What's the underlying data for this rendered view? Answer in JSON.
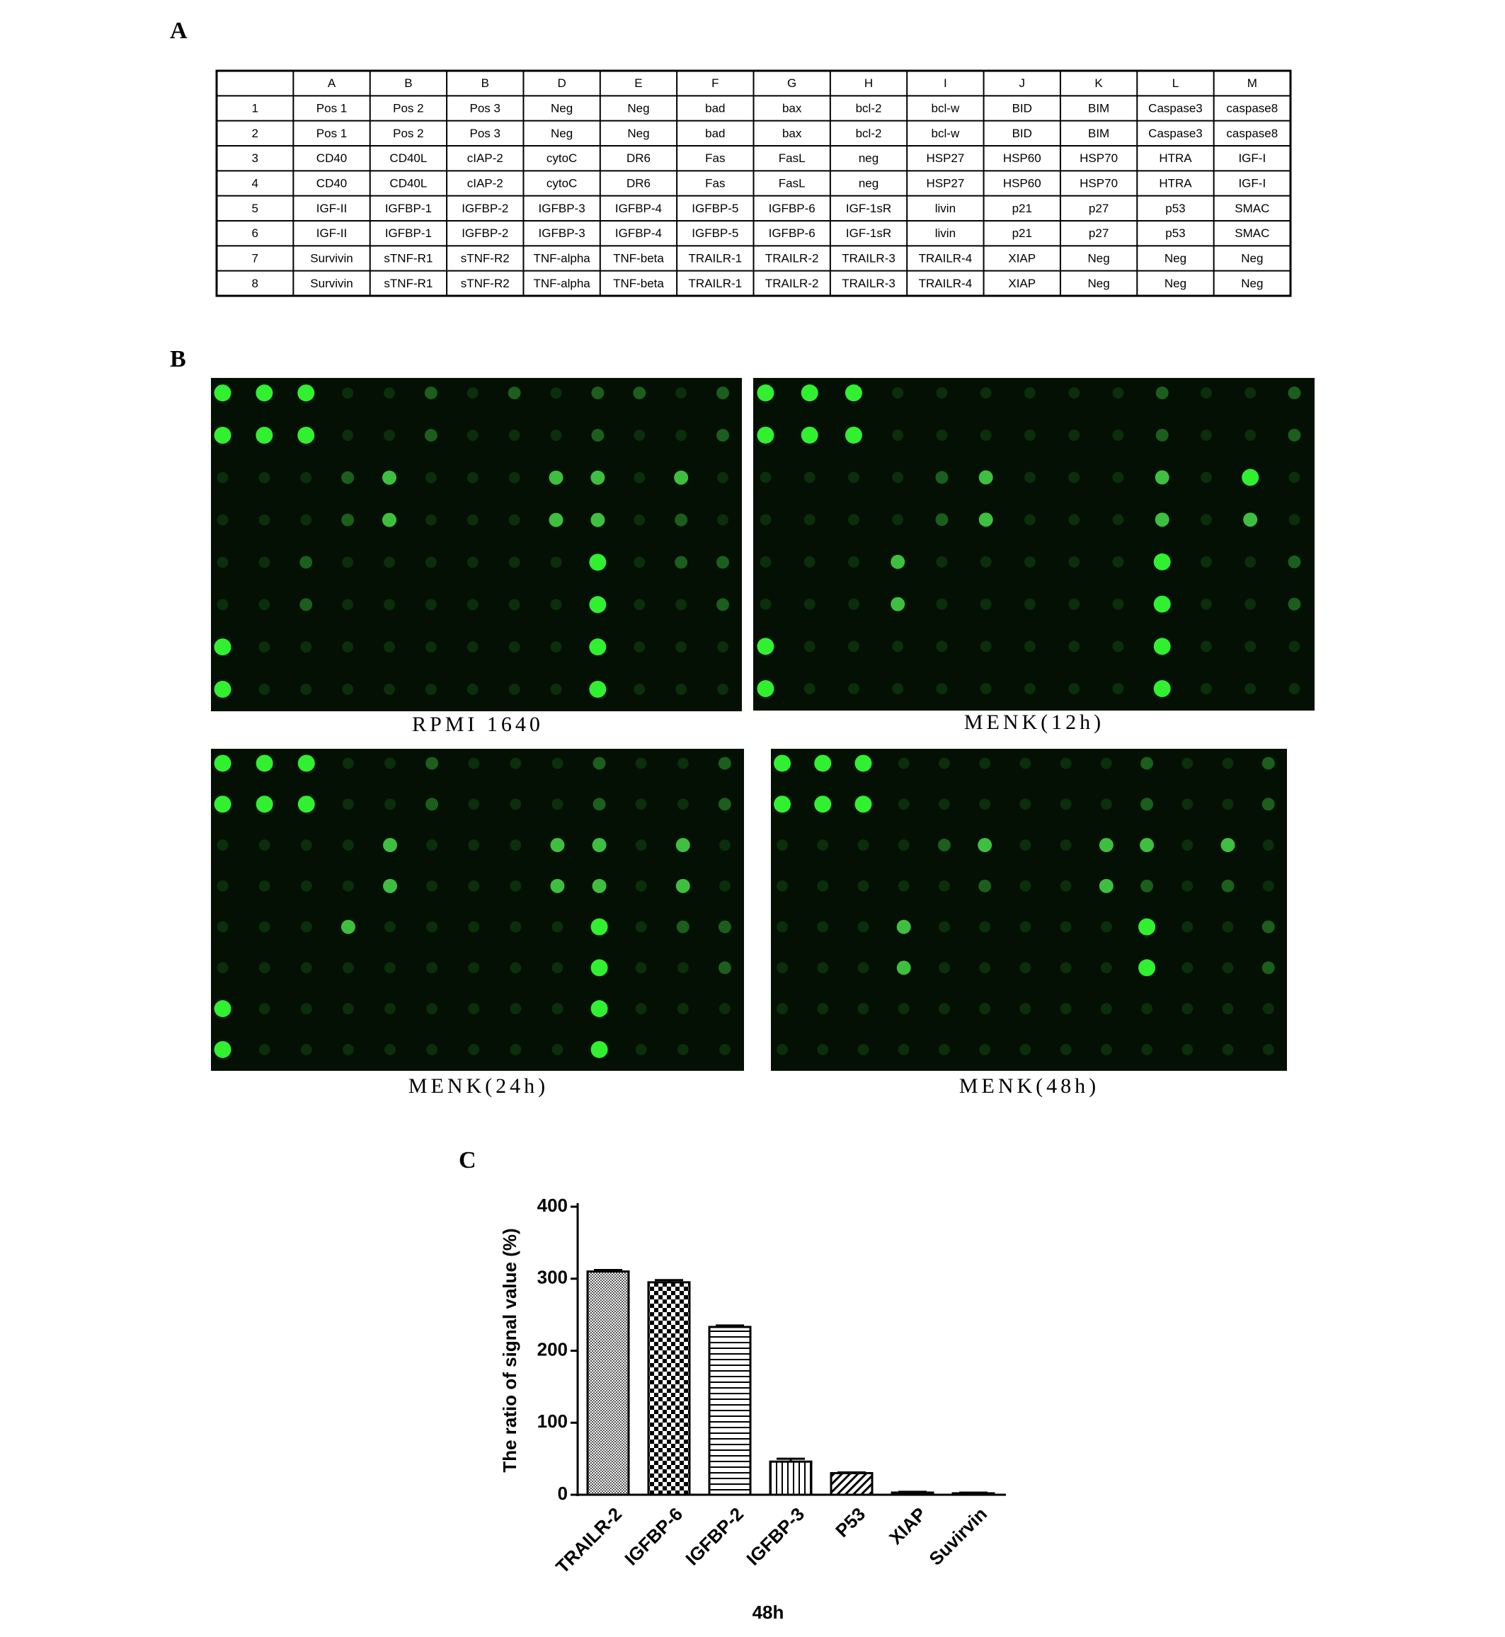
{
  "panel_labels": [
    "A",
    "B",
    "C"
  ],
  "table": {
    "columns": [
      "A",
      "B",
      "B",
      "D",
      "E",
      "F",
      "G",
      "H",
      "I",
      "J",
      "K",
      "L",
      "M"
    ],
    "rows": [
      [
        "1",
        "Pos 1",
        "Pos 2",
        "Pos 3",
        "Neg",
        "Neg",
        "bad",
        "bax",
        "bcl-2",
        "bcl-w",
        "BID",
        "BIM",
        "Caspase3",
        "caspase8"
      ],
      [
        "2",
        "Pos 1",
        "Pos 2",
        "Pos 3",
        "Neg",
        "Neg",
        "bad",
        "bax",
        "bcl-2",
        "bcl-w",
        "BID",
        "BIM",
        "Caspase3",
        "caspase8"
      ],
      [
        "3",
        "CD40",
        "CD40L",
        "cIAP-2",
        "cytoC",
        "DR6",
        "Fas",
        "FasL",
        "neg",
        "HSP27",
        "HSP60",
        "HSP70",
        "HTRA",
        "IGF-I"
      ],
      [
        "4",
        "CD40",
        "CD40L",
        "cIAP-2",
        "cytoC",
        "DR6",
        "Fas",
        "FasL",
        "neg",
        "HSP27",
        "HSP60",
        "HSP70",
        "HTRA",
        "IGF-I"
      ],
      [
        "5",
        "IGF-II",
        "IGFBP-1",
        "IGFBP-2",
        "IGFBP-3",
        "IGFBP-4",
        "IGFBP-5",
        "IGFBP-6",
        "IGF-1sR",
        "livin",
        "p21",
        "p27",
        "p53",
        "SMAC"
      ],
      [
        "6",
        "IGF-II",
        "IGFBP-1",
        "IGFBP-2",
        "IGFBP-3",
        "IGFBP-4",
        "IGFBP-5",
        "IGFBP-6",
        "IGF-1sR",
        "livin",
        "p21",
        "p27",
        "p53",
        "SMAC"
      ],
      [
        "7",
        "Survivin",
        "sTNF-R1",
        "sTNF-R2",
        "TNF-alpha",
        "TNF-beta",
        "TRAILR-1",
        "TRAILR-2",
        "TRAILR-3",
        "TRAILR-4",
        "XIAP",
        "Neg",
        "Neg",
        "Neg"
      ],
      [
        "8",
        "Survivin",
        "sTNF-R1",
        "sTNF-R2",
        "TNF-alpha",
        "TNF-beta",
        "TRAILR-1",
        "TRAILR-2",
        "TRAILR-3",
        "TRAILR-4",
        "XIAP",
        "Neg",
        "Neg",
        "Neg"
      ]
    ]
  },
  "arrays": {
    "captions": [
      "RPMI 1640",
      "MENK(12h)",
      "MENK(24h)",
      "MENK(48h)"
    ]
  },
  "chart_data": {
    "type": "bar",
    "y_label": "The ratio of signal value (%)",
    "x_label": "48h",
    "categories": [
      "TRAILR-2",
      "IGFBP-6",
      "IGFBP-2",
      "IGFBP-3",
      "P53",
      "XIAP",
      "Suvirvin"
    ],
    "values": [
      310,
      295,
      233,
      46,
      30,
      3,
      2
    ],
    "errors": [
      2,
      3,
      2,
      4,
      1,
      1,
      1
    ],
    "color": "#000000",
    "ylim": [
      0,
      400
    ],
    "yticks": [
      0,
      100,
      200,
      300,
      400
    ],
    "grid": false
  }
}
